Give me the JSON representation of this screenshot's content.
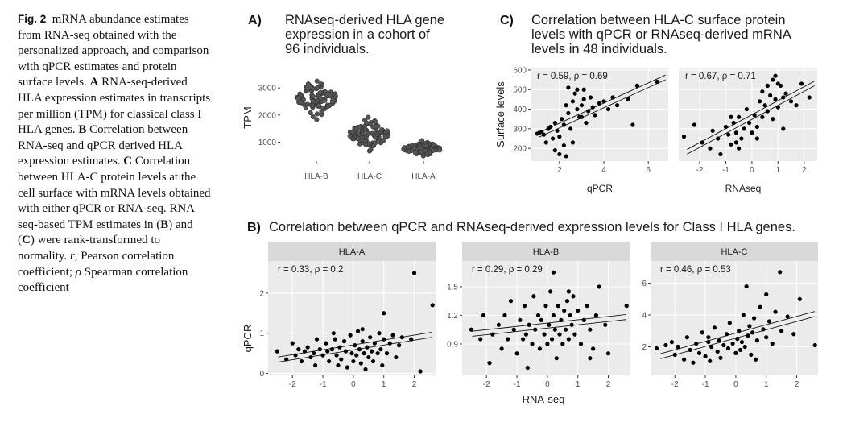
{
  "caption": {
    "fig_label": "Fig. 2",
    "intro": "mRNA abundance estimates from RNA-seq obtained with the personalized approach, and comparison with qPCR estimates and protein surface levels.",
    "a_label": "A",
    "a_text": "RNA-seq-derived HLA expression estimates in transcripts per million (TPM) for classical class I HLA genes.",
    "b_label": "B",
    "b_text": "Correlation between RNA-seq and qPCR derived HLA expression estimates.",
    "c_label": "C",
    "c_text": "Correlation between HLA-C protein levels at the cell surface with mRNA levels obtained with either qPCR or RNA-seq. RNA-seq-based TPM estimates in (",
    "b_ref": "B",
    "and": ") and (",
    "c_ref": "C",
    "tail": ") were rank-transformed to normality.",
    "r_sym": "r",
    "r_desc": ", Pearson correlation coefficient;",
    "rho_sym": "ρ",
    "rho_desc": "Spearman correlation coefficient"
  },
  "panelA": {
    "label": "A)",
    "title_lines": [
      "RNAseq-derived HLA gene",
      "expression in a cohort of",
      "96 individuals."
    ],
    "ylabel": "TPM"
  },
  "panelB": {
    "label": "B)",
    "title": "Correlation between qPCR and RNAseq-derived expression levels for Class I HLA genes.",
    "ylabel": "qPCR",
    "xlabel": "RNA-seq",
    "facets": [
      "HLA-A",
      "HLA-B",
      "HLA-C"
    ],
    "stats": [
      "r = 0.33,  ρ = 0.2",
      "r = 0.29,  ρ = 0.29",
      "r = 0.46,  ρ = 0.53"
    ]
  },
  "panelC": {
    "label": "C)",
    "title_lines": [
      "Correlation between HLA-C surface protein",
      "levels with qPCR or RNAseq-derived mRNA",
      "levels in 48 individuals."
    ],
    "ylabel": "Surface levels",
    "xlabels": [
      "qPCR",
      "RNAseq"
    ],
    "stats": [
      "r = 0.59,  ρ = 0.69",
      "r = 0.67,  ρ = 0.71"
    ]
  },
  "chart_data": [
    {
      "type": "scatter",
      "title": "RNAseq-derived HLA gene expression in a cohort of 96 individuals.",
      "xlabel": "",
      "ylabel": "TPM",
      "categories": [
        "HLA-B",
        "HLA-C",
        "HLA-A"
      ],
      "yticks": [
        1000,
        2000,
        3000
      ],
      "series": [
        {
          "name": "HLA-B",
          "mean": 2650,
          "sd": 350,
          "n": 96
        },
        {
          "name": "HLA-C",
          "mean": 1300,
          "sd": 300,
          "n": 96
        },
        {
          "name": "HLA-A",
          "mean": 760,
          "sd": 130,
          "n": 96
        }
      ],
      "point_color": "#555555"
    },
    {
      "type": "scatter",
      "title": "Correlation between qPCR and RNAseq-derived expression levels for Class I HLA genes.",
      "panel": "HLA-A",
      "xlabel": "RNA-seq",
      "ylabel": "qPCR",
      "xlim": [
        -2.8,
        2.7
      ],
      "ylim": [
        -0.05,
        2.8
      ],
      "xticks": [
        -2,
        -1,
        0,
        1,
        2
      ],
      "yticks": [
        0,
        1,
        2
      ],
      "stats": {
        "r": 0.33,
        "rho": 0.2
      },
      "points": [
        [
          -2.5,
          0.55
        ],
        [
          -2.2,
          0.35
        ],
        [
          -2.0,
          0.75
        ],
        [
          -1.9,
          0.45
        ],
        [
          -1.8,
          0.6
        ],
        [
          -1.7,
          0.3
        ],
        [
          -1.6,
          0.55
        ],
        [
          -1.5,
          0.65
        ],
        [
          -1.4,
          0.4
        ],
        [
          -1.3,
          0.5
        ],
        [
          -1.25,
          0.2
        ],
        [
          -1.1,
          0.6
        ],
        [
          -1.0,
          0.45
        ],
        [
          -0.9,
          0.75
        ],
        [
          -0.85,
          0.55
        ],
        [
          -0.8,
          0.3
        ],
        [
          -0.7,
          0.6
        ],
        [
          -0.6,
          0.85
        ],
        [
          -0.55,
          0.45
        ],
        [
          -0.5,
          0.2
        ],
        [
          -0.45,
          0.65
        ],
        [
          -0.4,
          0.35
        ],
        [
          -0.3,
          0.8
        ],
        [
          -0.25,
          0.55
        ],
        [
          -0.2,
          0.15
        ],
        [
          -0.1,
          0.95
        ],
        [
          -0.05,
          0.5
        ],
        [
          0.0,
          0.3
        ],
        [
          0.05,
          0.7
        ],
        [
          0.1,
          0.45
        ],
        [
          0.15,
          1.05
        ],
        [
          0.2,
          0.6
        ],
        [
          0.25,
          0.25
        ],
        [
          0.3,
          0.8
        ],
        [
          0.35,
          0.5
        ],
        [
          0.4,
          0.1
        ],
        [
          0.45,
          0.65
        ],
        [
          0.5,
          0.4
        ],
        [
          0.55,
          0.9
        ],
        [
          0.6,
          0.55
        ],
        [
          0.65,
          0.3
        ],
        [
          0.7,
          0.75
        ],
        [
          0.8,
          0.5
        ],
        [
          0.85,
          1.0
        ],
        [
          0.9,
          0.6
        ],
        [
          0.95,
          0.2
        ],
        [
          1.0,
          0.85
        ],
        [
          1.1,
          0.5
        ],
        [
          1.2,
          0.75
        ],
        [
          1.3,
          0.95
        ],
        [
          1.4,
          0.4
        ],
        [
          1.5,
          0.7
        ],
        [
          1.6,
          0.9
        ],
        [
          1.0,
          1.5
        ],
        [
          1.9,
          0.85
        ],
        [
          2.0,
          2.5
        ],
        [
          2.2,
          0.05
        ],
        [
          2.6,
          1.7
        ],
        [
          -1.2,
          0.85
        ],
        [
          -0.65,
          1.0
        ],
        [
          0.3,
          1.1
        ]
      ]
    },
    {
      "type": "scatter",
      "panel": "HLA-B",
      "xlabel": "RNA-seq",
      "ylabel": "qPCR",
      "xlim": [
        -2.8,
        2.7
      ],
      "ylim": [
        0.57,
        1.77
      ],
      "xticks": [
        -2,
        -1,
        0,
        1,
        2
      ],
      "yticks": [
        0.9,
        1.2,
        1.5
      ],
      "stats": {
        "r": 0.29,
        "rho": 0.29
      },
      "points": [
        [
          -2.5,
          1.05
        ],
        [
          -2.2,
          0.95
        ],
        [
          -2.1,
          1.2
        ],
        [
          -1.9,
          0.7
        ],
        [
          -1.8,
          1.0
        ],
        [
          -1.6,
          1.1
        ],
        [
          -1.5,
          0.85
        ],
        [
          -1.4,
          1.2
        ],
        [
          -1.3,
          0.95
        ],
        [
          -1.2,
          1.35
        ],
        [
          -1.1,
          1.05
        ],
        [
          -1.0,
          0.8
        ],
        [
          -0.9,
          1.15
        ],
        [
          -0.8,
          0.95
        ],
        [
          -0.75,
          1.3
        ],
        [
          -0.7,
          1.0
        ],
        [
          -0.6,
          1.1
        ],
        [
          -0.5,
          0.9
        ],
        [
          -0.45,
          1.4
        ],
        [
          -0.4,
          1.05
        ],
        [
          -0.3,
          1.2
        ],
        [
          -0.25,
          0.85
        ],
        [
          -0.2,
          1.15
        ],
        [
          -0.1,
          1.0
        ],
        [
          -0.05,
          1.3
        ],
        [
          0.0,
          0.9
        ],
        [
          0.05,
          1.1
        ],
        [
          0.1,
          1.45
        ],
        [
          0.15,
          0.95
        ],
        [
          0.2,
          1.2
        ],
        [
          0.25,
          1.05
        ],
        [
          0.3,
          0.75
        ],
        [
          0.35,
          1.3
        ],
        [
          0.4,
          1.0
        ],
        [
          0.45,
          1.15
        ],
        [
          0.5,
          0.9
        ],
        [
          0.55,
          1.25
        ],
        [
          0.6,
          1.05
        ],
        [
          0.65,
          1.35
        ],
        [
          0.7,
          0.95
        ],
        [
          0.75,
          1.2
        ],
        [
          0.8,
          1.1
        ],
        [
          0.85,
          1.4
        ],
        [
          0.9,
          1.0
        ],
        [
          1.0,
          1.25
        ],
        [
          1.1,
          0.9
        ],
        [
          1.2,
          1.15
        ],
        [
          1.3,
          1.3
        ],
        [
          1.4,
          1.05
        ],
        [
          1.5,
          0.85
        ],
        [
          1.6,
          1.2
        ],
        [
          1.7,
          1.5
        ],
        [
          1.9,
          1.1
        ],
        [
          2.0,
          0.8
        ],
        [
          2.6,
          1.3
        ],
        [
          0.2,
          1.65
        ],
        [
          -0.65,
          0.65
        ],
        [
          1.4,
          0.75
        ],
        [
          0.7,
          1.45
        ]
      ]
    },
    {
      "type": "scatter",
      "panel": "HLA-C",
      "xlabel": "RNA-seq",
      "ylabel": "qPCR",
      "xlim": [
        -2.8,
        2.7
      ],
      "ylim": [
        0.2,
        7.4
      ],
      "xticks": [
        -2,
        -1,
        0,
        1,
        2
      ],
      "yticks": [
        2,
        4,
        6
      ],
      "stats": {
        "r": 0.46,
        "rho": 0.53
      },
      "points": [
        [
          -2.6,
          1.9
        ],
        [
          -2.3,
          2.1
        ],
        [
          -2.1,
          2.3
        ],
        [
          -2.0,
          1.5
        ],
        [
          -1.9,
          2.0
        ],
        [
          -1.7,
          1.2
        ],
        [
          -1.6,
          2.6
        ],
        [
          -1.5,
          1.8
        ],
        [
          -1.4,
          1.0
        ],
        [
          -1.3,
          2.2
        ],
        [
          -1.2,
          1.6
        ],
        [
          -1.1,
          2.9
        ],
        [
          -1.0,
          1.4
        ],
        [
          -0.9,
          2.3
        ],
        [
          -0.85,
          1.1
        ],
        [
          -0.8,
          2.0
        ],
        [
          -0.7,
          3.2
        ],
        [
          -0.6,
          1.7
        ],
        [
          -0.55,
          2.4
        ],
        [
          -0.5,
          1.3
        ],
        [
          -0.4,
          2.1
        ],
        [
          -0.3,
          2.8
        ],
        [
          -0.25,
          1.9
        ],
        [
          -0.2,
          3.5
        ],
        [
          -0.1,
          2.2
        ],
        [
          0.0,
          1.6
        ],
        [
          0.05,
          2.5
        ],
        [
          0.1,
          3.0
        ],
        [
          0.15,
          1.8
        ],
        [
          0.2,
          2.3
        ],
        [
          0.25,
          4.0
        ],
        [
          0.3,
          2.0
        ],
        [
          0.4,
          2.7
        ],
        [
          0.45,
          3.3
        ],
        [
          0.5,
          1.5
        ],
        [
          0.55,
          2.9
        ],
        [
          0.6,
          3.8
        ],
        [
          0.7,
          2.4
        ],
        [
          0.8,
          4.5
        ],
        [
          0.9,
          3.1
        ],
        [
          1.0,
          2.6
        ],
        [
          1.1,
          3.6
        ],
        [
          1.2,
          2.2
        ],
        [
          1.3,
          4.2
        ],
        [
          1.5,
          3.0
        ],
        [
          1.7,
          3.9
        ],
        [
          1.9,
          2.8
        ],
        [
          2.1,
          5.0
        ],
        [
          0.35,
          5.8
        ],
        [
          1.45,
          6.7
        ],
        [
          1.0,
          5.3
        ],
        [
          2.6,
          2.1
        ],
        [
          -0.9,
          2.6
        ],
        [
          0.65,
          1.2
        ]
      ]
    },
    {
      "type": "scatter",
      "title": "Correlation between HLA-C surface protein levels with qPCR or RNAseq-derived mRNA levels in 48 individuals.",
      "panel": "qPCR",
      "xlabel": "qPCR",
      "ylabel": "Surface levels",
      "xlim": [
        0.7,
        6.9
      ],
      "ylim": [
        135,
        612
      ],
      "xticks": [
        2,
        4,
        6
      ],
      "yticks": [
        200,
        300,
        400,
        500,
        600
      ],
      "stats": {
        "r": 0.59,
        "rho": 0.69
      },
      "points": [
        [
          1.0,
          275
        ],
        [
          1.1,
          280
        ],
        [
          1.2,
          285
        ],
        [
          1.3,
          270
        ],
        [
          1.5,
          300
        ],
        [
          1.6,
          310
        ],
        [
          1.7,
          250
        ],
        [
          1.8,
          330
        ],
        [
          1.9,
          290
        ],
        [
          2.0,
          260
        ],
        [
          2.1,
          350
        ],
        [
          2.2,
          320
        ],
        [
          2.3,
          420
        ],
        [
          2.4,
          380
        ],
        [
          2.5,
          300
        ],
        [
          2.6,
          440
        ],
        [
          2.7,
          480
        ],
        [
          2.8,
          400
        ],
        [
          2.9,
          360
        ],
        [
          3.0,
          420
        ],
        [
          3.1,
          450
        ],
        [
          3.2,
          330
        ],
        [
          3.3,
          390
        ],
        [
          3.4,
          460
        ],
        [
          3.5,
          410
        ],
        [
          3.6,
          370
        ],
        [
          3.8,
          430
        ],
        [
          4.0,
          440
        ],
        [
          4.2,
          400
        ],
        [
          4.4,
          460
        ],
        [
          4.6,
          420
        ],
        [
          5.1,
          450
        ],
        [
          5.3,
          320
        ],
        [
          5.5,
          520
        ],
        [
          6.4,
          540
        ],
        [
          2.4,
          510
        ],
        [
          2.8,
          500
        ],
        [
          1.4,
          230
        ],
        [
          1.8,
          190
        ],
        [
          2.2,
          215
        ],
        [
          2.0,
          170
        ],
        [
          2.3,
          160
        ],
        [
          2.6,
          230
        ],
        [
          3.1,
          500
        ],
        [
          3.0,
          360
        ]
      ]
    },
    {
      "type": "scatter",
      "panel": "RNAseq",
      "xlabel": "RNAseq",
      "ylabel": "Surface levels",
      "xlim": [
        -2.8,
        2.5
      ],
      "ylim": [
        135,
        612
      ],
      "xticks": [
        -2,
        -1,
        0,
        1,
        2
      ],
      "yticks": [
        200,
        300,
        400,
        500,
        600
      ],
      "stats": {
        "r": 0.67,
        "rho": 0.71
      },
      "points": [
        [
          -2.6,
          260
        ],
        [
          -2.2,
          320
        ],
        [
          -1.9,
          230
        ],
        [
          -1.6,
          200
        ],
        [
          -1.5,
          290
        ],
        [
          -1.3,
          250
        ],
        [
          -1.2,
          170
        ],
        [
          -1.0,
          310
        ],
        [
          -0.9,
          270
        ],
        [
          -0.8,
          220
        ],
        [
          -0.7,
          330
        ],
        [
          -0.6,
          280
        ],
        [
          -0.5,
          360
        ],
        [
          -0.4,
          250
        ],
        [
          -0.3,
          300
        ],
        [
          -0.2,
          400
        ],
        [
          -0.1,
          330
        ],
        [
          0.0,
          280
        ],
        [
          0.1,
          370
        ],
        [
          0.2,
          310
        ],
        [
          0.3,
          440
        ],
        [
          0.4,
          360
        ],
        [
          0.5,
          420
        ],
        [
          0.6,
          390
        ],
        [
          0.7,
          470
        ],
        [
          0.8,
          350
        ],
        [
          0.9,
          450
        ],
        [
          1.0,
          410
        ],
        [
          1.1,
          520
        ],
        [
          1.2,
          460
        ],
        [
          1.3,
          480
        ],
        [
          1.5,
          440
        ],
        [
          1.7,
          420
        ],
        [
          1.9,
          530
        ],
        [
          2.2,
          460
        ],
        [
          0.6,
          520
        ],
        [
          0.8,
          550
        ],
        [
          1.0,
          530
        ],
        [
          0.9,
          570
        ],
        [
          -0.6,
          230
        ],
        [
          -0.5,
          200
        ],
        [
          0.2,
          250
        ],
        [
          1.2,
          300
        ],
        [
          -0.8,
          360
        ],
        [
          0.4,
          490
        ]
      ]
    }
  ]
}
